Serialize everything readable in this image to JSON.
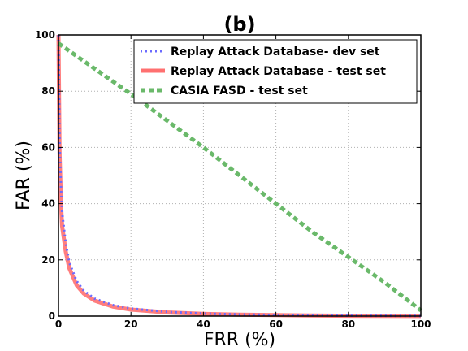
{
  "chart_data": {
    "type": "line",
    "title": "(b)",
    "xlabel": "FRR (%)",
    "ylabel": "FAR (%)",
    "xlim": [
      0,
      100
    ],
    "ylim": [
      0,
      100
    ],
    "xticks": [
      0,
      20,
      40,
      60,
      80,
      100
    ],
    "yticks": [
      0,
      20,
      40,
      60,
      80,
      100
    ],
    "grid": true,
    "legend_position": "top-right",
    "series": [
      {
        "name": "Replay Attack Database- dev set",
        "color": "#6b6bff",
        "style": "dotted",
        "x": [
          0,
          0.3,
          0.7,
          1,
          2,
          3,
          5,
          7,
          10,
          15,
          20,
          30,
          40,
          50,
          60,
          70,
          80,
          90,
          100
        ],
        "y": [
          100,
          62,
          45,
          37,
          26,
          19,
          12.5,
          9,
          6.2,
          3.9,
          2.7,
          1.5,
          0.9,
          0.6,
          0.4,
          0.25,
          0.15,
          0.1,
          0.05
        ]
      },
      {
        "name": "Replay Attack Database - test set",
        "color": "#ff7070",
        "style": "solid",
        "x": [
          0,
          0.3,
          0.7,
          1,
          2,
          3,
          5,
          7,
          10,
          15,
          20,
          30,
          40,
          50,
          60,
          70,
          80,
          90,
          100
        ],
        "y": [
          100,
          58,
          40,
          32,
          23,
          17,
          11,
          8,
          5.5,
          3.4,
          2.3,
          1.3,
          0.8,
          0.5,
          0.35,
          0.2,
          0.12,
          0.08,
          0.04
        ]
      },
      {
        "name": "CASIA FASD - test set",
        "color": "#6ab96a",
        "style": "dashed",
        "x": [
          0,
          10,
          20,
          30,
          40,
          50,
          60,
          70,
          80,
          90,
          100
        ],
        "y": [
          97,
          88,
          79,
          69.5,
          60,
          50,
          40,
          30,
          21,
          12,
          2
        ]
      }
    ]
  }
}
